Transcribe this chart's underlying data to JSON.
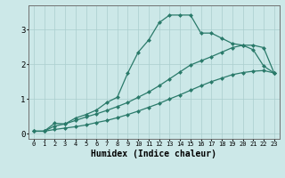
{
  "xlabel": "Humidex (Indice chaleur)",
  "bg_color": "#cce8e8",
  "grid_color": "#aacece",
  "line_color": "#2a7a6a",
  "line1_x": [
    0,
    1,
    2,
    3,
    4,
    5,
    6,
    7,
    8,
    9,
    10,
    11,
    12,
    13,
    14,
    15,
    16,
    17,
    18,
    19,
    20,
    21,
    22,
    23
  ],
  "line1_y": [
    0.07,
    0.07,
    0.3,
    0.28,
    0.45,
    0.55,
    0.68,
    0.9,
    1.05,
    1.75,
    2.35,
    2.7,
    3.2,
    3.42,
    3.42,
    3.42,
    2.9,
    2.9,
    2.75,
    2.6,
    2.55,
    2.42,
    1.95,
    1.75
  ],
  "line2_x": [
    0,
    1,
    2,
    3,
    4,
    5,
    6,
    7,
    8,
    9,
    10,
    11,
    12,
    13,
    14,
    15,
    16,
    17,
    18,
    19,
    20,
    21,
    22,
    23
  ],
  "line2_y": [
    0.07,
    0.07,
    0.22,
    0.28,
    0.38,
    0.48,
    0.57,
    0.67,
    0.78,
    0.9,
    1.05,
    1.2,
    1.38,
    1.58,
    1.78,
    1.98,
    2.1,
    2.22,
    2.35,
    2.48,
    2.55,
    2.55,
    2.48,
    1.75
  ],
  "line3_x": [
    0,
    1,
    2,
    3,
    4,
    5,
    6,
    7,
    8,
    9,
    10,
    11,
    12,
    13,
    14,
    15,
    16,
    17,
    18,
    19,
    20,
    21,
    22,
    23
  ],
  "line3_y": [
    0.07,
    0.07,
    0.12,
    0.16,
    0.2,
    0.25,
    0.32,
    0.38,
    0.46,
    0.55,
    0.65,
    0.76,
    0.87,
    1.0,
    1.12,
    1.25,
    1.38,
    1.5,
    1.6,
    1.7,
    1.76,
    1.8,
    1.82,
    1.75
  ],
  "xlim": [
    -0.5,
    23.5
  ],
  "ylim": [
    -0.15,
    3.7
  ],
  "yticks": [
    0,
    1,
    2,
    3
  ],
  "xticks": [
    0,
    1,
    2,
    3,
    4,
    5,
    6,
    7,
    8,
    9,
    10,
    11,
    12,
    13,
    14,
    15,
    16,
    17,
    18,
    19,
    20,
    21,
    22,
    23
  ],
  "xlabel_fontsize": 7,
  "tick_fontsize": 6,
  "marker_size": 2.5,
  "line_width": 0.9
}
